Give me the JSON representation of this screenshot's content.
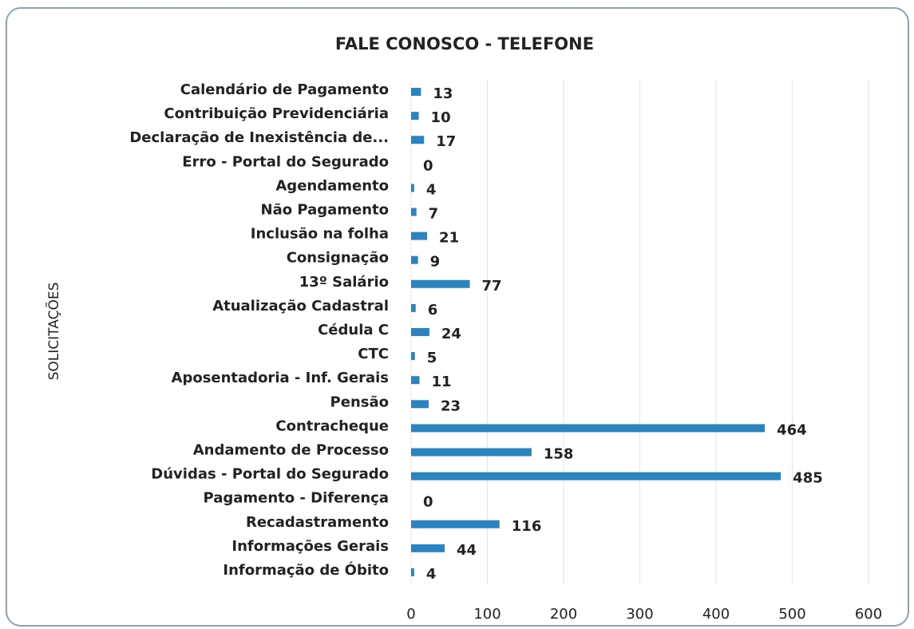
{
  "chart_data": {
    "type": "bar",
    "orientation": "horizontal",
    "title": "FALE CONOSCO - TELEFONE",
    "y_label": "SOLICITAÇÕES",
    "categories": [
      "Calendário de Pagamento",
      "Contribuição Previdenciária",
      "Declaração de Inexistência de...",
      "Erro - Portal do Segurado",
      "Agendamento",
      "Não Pagamento",
      "Inclusão na folha",
      "Consignação",
      "13º Salário",
      "Atualização Cadastral",
      "Cédula C",
      "CTC",
      "Aposentadoria - Inf. Gerais",
      "Pensão",
      "Contracheque",
      "Andamento de Processo",
      "Dúvidas - Portal do Segurado",
      "Pagamento - Diferença",
      "Recadastramento",
      "Informações Gerais",
      "Informação de Óbito"
    ],
    "values": [
      13,
      10,
      17,
      0,
      4,
      7,
      21,
      9,
      77,
      6,
      24,
      5,
      11,
      23,
      464,
      158,
      485,
      0,
      116,
      44,
      4
    ],
    "color": "#2b83c0",
    "xlim": [
      0,
      600
    ],
    "xticks": [
      0,
      100,
      200,
      300,
      400,
      500,
      600
    ],
    "grid": true
  }
}
